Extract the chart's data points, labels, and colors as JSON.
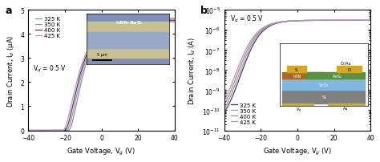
{
  "panel_a": {
    "label": "a",
    "xlabel": "Gate Voltage, V$_g$ (V)",
    "ylabel": "Drain Current, I$_d$ (μA)",
    "xlim": [
      -40,
      40
    ],
    "ylim": [
      0,
      5
    ],
    "yticks": [
      0,
      1,
      2,
      3,
      4,
      5
    ],
    "xticks": [
      -40,
      -20,
      0,
      20,
      40
    ],
    "vd_label": "V$_d$ = 0.5 V",
    "temperatures": [
      "325 K",
      "350 K",
      "400 K",
      "425 K"
    ],
    "colors_a": [
      "#9090a0",
      "#b09090",
      "#404070",
      "#c090c0"
    ],
    "vths_a": [
      -18,
      -19,
      -20,
      -21
    ],
    "sss_a": [
      6.5,
      6.6,
      6.7,
      6.8
    ],
    "imaxs_a": [
      4.65,
      4.6,
      4.55,
      4.5
    ]
  },
  "panel_b": {
    "label": "b",
    "xlabel": "Gate Voltage, V$_g$ (V)",
    "ylabel": "Drain Current, I$_d$ (A)",
    "xlim": [
      -40,
      40
    ],
    "xticks": [
      -40,
      -20,
      0,
      20,
      40
    ],
    "vd_label": "V$_d$ = 0.5 V",
    "temperatures": [
      "325 K",
      "350 K",
      "400 K",
      "425 K"
    ],
    "colors_b": [
      "#404070",
      "#b09090",
      "#9090a0",
      "#c090c0"
    ],
    "vths_b": [
      -31,
      -32,
      -33,
      -34
    ],
    "sss_b": [
      5.5,
      5.6,
      5.7,
      5.8
    ],
    "imax_b": 3e-06,
    "imin_b": 1e-11
  },
  "inset_a": {
    "bg_color": "#8090b8",
    "strip_color": "#c8c090",
    "channel_color": "#b0b8d0",
    "text": "hBN-ReS$_2$",
    "text_color": "white",
    "scalebar_label": "5 μm"
  },
  "inset_b": {
    "si_color": "#808080",
    "sio2_color": "#80b8e0",
    "hbn_color": "#b06820",
    "res2_color": "#5a9040",
    "au_color": "#d4a820",
    "text_color_white": "white",
    "text_color_black": "black"
  }
}
